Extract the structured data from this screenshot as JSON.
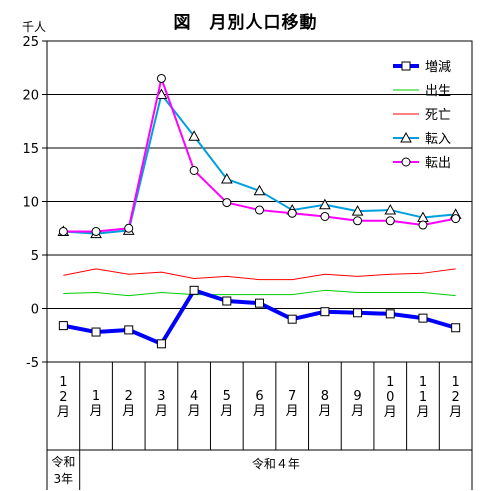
{
  "chart_data": {
    "type": "line",
    "title": "図　月別人口移動",
    "unit": "千人",
    "ylim": [
      -5,
      25
    ],
    "yticks": [
      25,
      20,
      15,
      10,
      5,
      0,
      -5
    ],
    "ytick_labels": [
      "25",
      "20",
      "15",
      "10",
      "5",
      "0",
      "-5"
    ],
    "grid": true,
    "legend": "top-right",
    "months": [
      [
        "1",
        "2",
        "月"
      ],
      [
        "1",
        "月"
      ],
      [
        "2",
        "月"
      ],
      [
        "3",
        "月"
      ],
      [
        "4",
        "月"
      ],
      [
        "5",
        "月"
      ],
      [
        "6",
        "月"
      ],
      [
        "7",
        "月"
      ],
      [
        "8",
        "月"
      ],
      [
        "9",
        "月"
      ],
      [
        "1",
        "0",
        "月"
      ],
      [
        "1",
        "1",
        "月"
      ],
      [
        "1",
        "2",
        "月"
      ]
    ],
    "years": [
      {
        "lines": [
          "令和",
          "3年"
        ],
        "span": [
          0,
          0
        ]
      },
      {
        "lines": [
          "令和４年"
        ],
        "span": [
          1,
          12
        ]
      }
    ],
    "series": [
      {
        "name": "増減",
        "color": "#0000ff",
        "marker": "square",
        "width": 4,
        "values": [
          -1.6,
          -2.2,
          -2.0,
          -3.3,
          1.7,
          0.7,
          0.5,
          -1.0,
          -0.3,
          -0.4,
          -0.5,
          -0.9,
          -1.8
        ]
      },
      {
        "name": "出生",
        "color": "#00cc00",
        "marker": "none",
        "width": 1,
        "values": [
          1.4,
          1.5,
          1.2,
          1.5,
          1.3,
          1.3,
          1.3,
          1.3,
          1.7,
          1.5,
          1.5,
          1.5,
          1.2
        ]
      },
      {
        "name": "死亡",
        "color": "#ff0000",
        "marker": "none",
        "width": 1,
        "values": [
          3.1,
          3.7,
          3.2,
          3.4,
          2.8,
          3.0,
          2.7,
          2.7,
          3.2,
          3.0,
          3.2,
          3.3,
          3.7
        ]
      },
      {
        "name": "転入",
        "color": "#00a0e0",
        "marker": "triangle",
        "width": 2,
        "values": [
          7.2,
          7.0,
          7.3,
          20.0,
          16.1,
          12.1,
          11.0,
          9.2,
          9.7,
          9.1,
          9.2,
          8.5,
          8.8
        ]
      },
      {
        "name": "転出",
        "color": "#ff00ff",
        "marker": "circle",
        "width": 2,
        "values": [
          7.2,
          7.2,
          7.5,
          21.5,
          12.9,
          9.9,
          9.2,
          8.9,
          8.6,
          8.2,
          8.2,
          7.8,
          8.4
        ]
      }
    ]
  }
}
